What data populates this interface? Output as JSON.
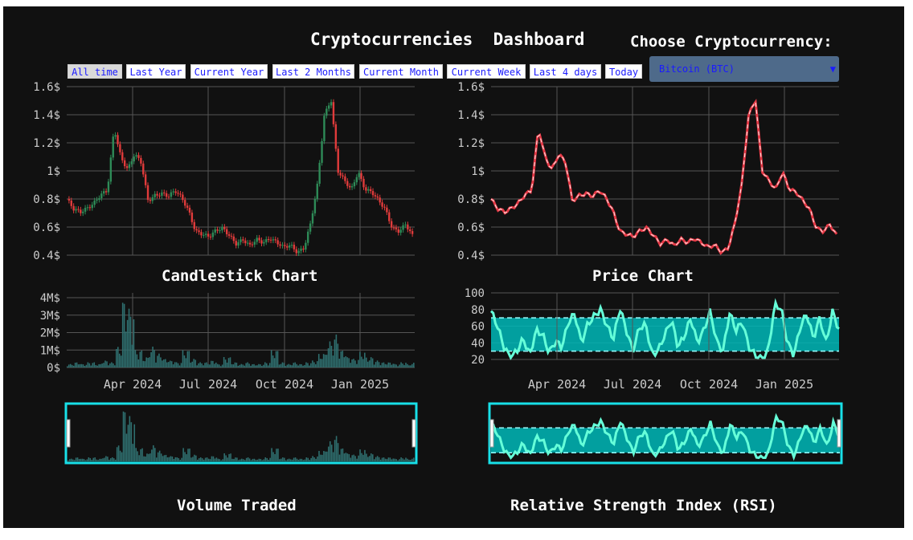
{
  "header": {
    "title": "Cryptocurrencies  Dashboard",
    "choose_label": "Choose Cryptocurrency:",
    "select": {
      "value": "Bitcoin (BTC)"
    }
  },
  "range_buttons": [
    {
      "label": "All time",
      "active": true
    },
    {
      "label": "Last Year"
    },
    {
      "label": "Current Year"
    },
    {
      "label": "Last 2 Months"
    },
    {
      "label": "Current Month"
    },
    {
      "label": "Current Week"
    },
    {
      "label": "Last 4 days"
    },
    {
      "label": "Today"
    }
  ],
  "colors": {
    "up": "#2e8b57",
    "down": "#e03b3b",
    "price_line": "#e63946",
    "price_dash": "#ffd6d6",
    "volume": "#2f6f6f",
    "rsi_band": "#00b8b8",
    "rsi_line": "#66ffd9",
    "navigator_border": "#18e0e8",
    "grid": "#555555",
    "tick": "#cccccc"
  },
  "chart_titles": {
    "candlestick": "Candlestick Chart",
    "price": "Price Chart",
    "volume": "Volume Traded",
    "rsi": "Relative Strength Index (RSI)"
  },
  "chart_data": [
    {
      "id": "candlestick",
      "type": "candlestick",
      "title": "Candlestick Chart",
      "y_ticks": [
        "1.6$",
        "1.4$",
        "1.2$",
        "1$",
        "0.8$",
        "0.6$",
        "0.4$"
      ],
      "ylim": [
        0.4,
        1.6
      ],
      "series": [
        {
          "name": "price",
          "values": [
            0.8,
            0.72,
            0.7,
            0.74,
            0.78,
            0.83,
            0.85,
            1.3,
            1.1,
            1.02,
            1.12,
            1.05,
            0.78,
            0.83,
            0.85,
            0.82,
            0.85,
            0.8,
            0.72,
            0.58,
            0.55,
            0.52,
            0.57,
            0.6,
            0.55,
            0.48,
            0.5,
            0.46,
            0.52,
            0.5,
            0.52,
            0.48,
            0.45,
            0.48,
            0.43,
            0.45,
            0.62,
            0.9,
            1.4,
            1.52,
            1.0,
            0.92,
            0.86,
            1.0,
            0.88,
            0.85,
            0.78,
            0.72,
            0.6,
            0.58,
            0.62,
            0.53
          ]
        }
      ]
    },
    {
      "id": "price",
      "type": "line",
      "title": "Price Chart",
      "y_ticks": [
        "1.6$",
        "1.4$",
        "1.2$",
        "1$",
        "0.8$",
        "0.6$",
        "0.4$"
      ],
      "ylim": [
        0.4,
        1.6
      ],
      "series": [
        {
          "name": "price",
          "values": [
            0.8,
            0.72,
            0.7,
            0.74,
            0.78,
            0.83,
            0.85,
            1.3,
            1.1,
            1.02,
            1.12,
            1.05,
            0.78,
            0.83,
            0.85,
            0.82,
            0.85,
            0.8,
            0.72,
            0.58,
            0.55,
            0.52,
            0.57,
            0.6,
            0.55,
            0.48,
            0.5,
            0.46,
            0.52,
            0.5,
            0.52,
            0.48,
            0.45,
            0.48,
            0.43,
            0.45,
            0.62,
            0.9,
            1.4,
            1.52,
            1.0,
            0.92,
            0.86,
            1.0,
            0.88,
            0.85,
            0.78,
            0.72,
            0.6,
            0.58,
            0.62,
            0.53
          ]
        }
      ]
    },
    {
      "id": "volume",
      "type": "bar",
      "title": "Volume Traded",
      "x_ticks": [
        "Apr 2024",
        "Jul 2024",
        "Oct 2024",
        "Jan 2025"
      ],
      "y_ticks": [
        "4M$",
        "3M$",
        "2M$",
        "1M$",
        "0$"
      ],
      "ylim": [
        0,
        4
      ],
      "series": [
        {
          "name": "volume",
          "values": [
            0.2,
            0.3,
            0.2,
            0.3,
            0.2,
            0.4,
            0.3,
            1.2,
            3.9,
            3.4,
            1.0,
            0.6,
            1.2,
            0.8,
            0.5,
            0.4,
            0.3,
            1.0,
            0.5,
            0.3,
            0.3,
            0.4,
            0.2,
            0.6,
            0.3,
            0.2,
            0.3,
            0.2,
            0.2,
            0.3,
            1.0,
            0.3,
            0.2,
            0.3,
            0.2,
            0.3,
            0.4,
            0.8,
            1.5,
            1.9,
            1.0,
            0.6,
            0.5,
            0.9,
            0.6,
            0.4,
            0.3,
            0.3,
            0.2,
            0.3,
            0.2,
            0.3
          ]
        }
      ]
    },
    {
      "id": "rsi",
      "type": "line",
      "title": "Relative Strength Index (RSI)",
      "x_ticks": [
        "Apr 2024",
        "Jul 2024",
        "Oct 2024",
        "Jan 2025"
      ],
      "y_ticks": [
        "100",
        "80",
        "60",
        "40",
        "20"
      ],
      "ylim": [
        20,
        100
      ],
      "band": [
        30,
        70
      ],
      "series": [
        {
          "name": "RSI",
          "values": [
            78,
            60,
            35,
            22,
            30,
            45,
            25,
            55,
            50,
            28,
            42,
            35,
            65,
            75,
            40,
            62,
            72,
            80,
            60,
            45,
            82,
            55,
            30,
            58,
            62,
            25,
            32,
            50,
            68,
            35,
            48,
            70,
            40,
            55,
            78,
            42,
            30,
            76,
            55,
            65,
            35,
            25,
            20,
            30,
            85,
            82,
            40,
            25,
            60,
            75,
            45,
            70,
            40,
            78,
            55
          ]
        }
      ]
    }
  ]
}
